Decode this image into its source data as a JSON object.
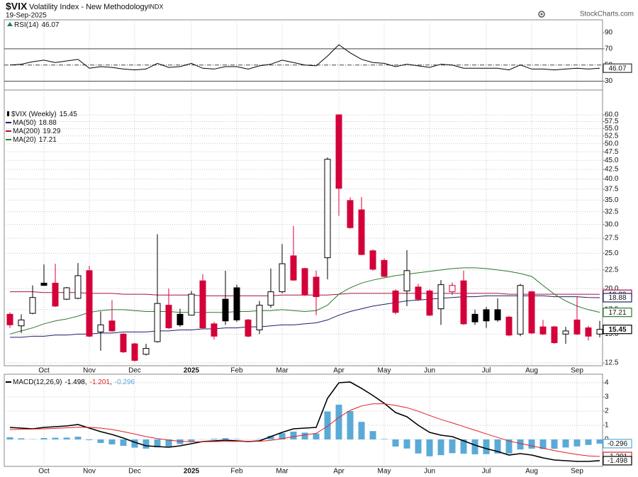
{
  "header": {
    "symbol": "$VIX",
    "name": "Volatility Index - New Methodology",
    "exchange": "INDX",
    "date": "19-Sep-2025",
    "source": "StockCharts.com"
  },
  "chart_data": [
    {
      "type": "line",
      "name": "RSI(14)",
      "color": "#000000",
      "overbought_fill": "#2e7d4f",
      "values": [
        50,
        51,
        54,
        56,
        53,
        55,
        57,
        46,
        48,
        47,
        45,
        44,
        45,
        52,
        47,
        48,
        52,
        46,
        45,
        48,
        48,
        45,
        49,
        51,
        56,
        53,
        50,
        49,
        61,
        75,
        65,
        57,
        53,
        52,
        48,
        51,
        49,
        47,
        51,
        50,
        46,
        46,
        46,
        46,
        44,
        50,
        45,
        45,
        44,
        45,
        46,
        45,
        46.07
      ],
      "ylim": [
        20,
        104
      ],
      "yticks": [
        30,
        50,
        70,
        90
      ],
      "reference_lines": [
        {
          "value": 70,
          "style": "solid"
        },
        {
          "value": 50,
          "style": "dash-dot"
        },
        {
          "value": 30,
          "style": "solid"
        }
      ]
    },
    {
      "type": "candlestick",
      "name": "$VIX (Weekly)",
      "categories": [
        null,
        null,
        null,
        "Oct",
        null,
        null,
        null,
        "Nov",
        null,
        null,
        null,
        "Dec",
        null,
        null,
        null,
        null,
        "2025",
        null,
        null,
        null,
        "Feb",
        null,
        null,
        null,
        "Mar",
        null,
        null,
        null,
        null,
        "Apr",
        null,
        null,
        null,
        "May",
        null,
        null,
        null,
        "Jun",
        null,
        null,
        null,
        null,
        "Jul",
        null,
        null,
        null,
        "Aug",
        null,
        null,
        null,
        "Sep",
        null,
        null
      ],
      "open": [
        17.0,
        15.8,
        17.1,
        20.7,
        20.7,
        18.7,
        18.8,
        22.4,
        15.2,
        16.3,
        15.0,
        14.1,
        13.2,
        14.3,
        18.0,
        17.0,
        16.9,
        21.0,
        16.0,
        18.7,
        20.1,
        16.4,
        15.4,
        18.0,
        19.6,
        24.6,
        22.7,
        21.5,
        24.3,
        60.0,
        34.9,
        32.9,
        25.4,
        23.9,
        19.7,
        19.7,
        20.2,
        19.7,
        17.6,
        19.6,
        21.0,
        17.0,
        17.5,
        17.5,
        16.7,
        15.0,
        19.6,
        15.7,
        15.7,
        15.0,
        16.4,
        15.6,
        15.0
      ],
      "high": [
        17.2,
        17.0,
        20.4,
        23.3,
        23.4,
        20.2,
        23.5,
        23.1,
        17.3,
        18.6,
        15.1,
        14.2,
        14.1,
        28.2,
        20.0,
        17.6,
        19.7,
        21.9,
        16.2,
        22.4,
        20.5,
        16.5,
        18.5,
        22.7,
        26.5,
        29.7,
        22.8,
        22.4,
        45.8,
        60.0,
        35.6,
        35.7,
        25.6,
        24.2,
        19.9,
        25.5,
        20.6,
        19.9,
        21.1,
        20.8,
        22.4,
        17.5,
        17.8,
        18.8,
        16.8,
        20.6,
        19.7,
        16.4,
        15.8,
        15.7,
        19.0,
        15.8,
        16.3
      ],
      "low": [
        15.6,
        15.1,
        17.0,
        20.4,
        17.8,
        18.6,
        18.7,
        14.7,
        13.5,
        15.2,
        13.3,
        12.6,
        13.1,
        14.2,
        15.5,
        15.7,
        16.9,
        15.5,
        14.5,
        15.9,
        16.2,
        14.7,
        15.0,
        17.7,
        19.4,
        21.0,
        19.1,
        16.9,
        21.2,
        31.7,
        29.2,
        24.7,
        22.4,
        21.5,
        17.0,
        17.9,
        18.5,
        16.8,
        15.9,
        19.2,
        15.9,
        15.9,
        15.6,
        16.2,
        14.8,
        14.8,
        15.0,
        14.9,
        14.1,
        14.1,
        14.9,
        14.4,
        14.7
      ],
      "close": [
        15.9,
        16.4,
        18.9,
        20.4,
        17.9,
        20.1,
        21.7,
        14.8,
        15.9,
        15.3,
        13.4,
        12.7,
        13.7,
        18.2,
        15.6,
        15.9,
        19.3,
        15.6,
        14.8,
        16.3,
        16.4,
        14.8,
        18.0,
        19.6,
        23.4,
        21.1,
        19.2,
        19.0,
        45.3,
        37.7,
        29.4,
        24.8,
        22.6,
        21.6,
        17.2,
        22.4,
        18.7,
        16.9,
        20.5,
        20.4,
        16.0,
        16.2,
        16.3,
        16.4,
        14.9,
        20.4,
        15.1,
        15.0,
        14.2,
        15.3,
        15.0,
        14.8,
        15.45
      ],
      "up_color": "#000000",
      "down_color": "#d4003a",
      "log_scale": true,
      "grid": true,
      "ylim": [
        12.5,
        60
      ],
      "yticks": [
        12.5,
        {
          "value": 15,
          "label": "15.0"
        },
        17.5,
        {
          "value": 20,
          "label": "20.0"
        },
        22.5,
        {
          "value": 25,
          "label": "25.0"
        },
        27.5,
        {
          "value": 30,
          "label": "30.0"
        },
        32.5,
        {
          "value": 35,
          "label": "35.0"
        },
        37.5,
        {
          "value": 40,
          "label": "40.0"
        },
        42.5,
        {
          "value": 45,
          "label": "45.0"
        },
        47.5,
        {
          "value": 50,
          "label": "50.0"
        },
        52.5,
        {
          "value": 55,
          "label": "55.0"
        },
        57.5,
        {
          "value": 60,
          "label": "60.0"
        }
      ],
      "overlays": [
        {
          "name": "MA(50)",
          "color": "#1f1f6b",
          "values": [
            14.7,
            14.7,
            14.8,
            14.8,
            14.9,
            14.9,
            15.0,
            15.0,
            15.1,
            15.1,
            15.2,
            15.2,
            15.2,
            15.3,
            15.3,
            15.4,
            15.4,
            15.5,
            15.5,
            15.6,
            15.6,
            15.7,
            15.7,
            15.8,
            15.9,
            15.9,
            16.0,
            16.1,
            16.4,
            16.9,
            17.3,
            17.6,
            17.9,
            18.1,
            18.3,
            18.5,
            18.6,
            18.7,
            18.8,
            18.9,
            19.0,
            19.0,
            19.1,
            19.1,
            19.1,
            19.1,
            19.1,
            19.1,
            19.0,
            19.0,
            19.0,
            18.9,
            18.88
          ]
        },
        {
          "name": "MA(200)",
          "color": "#a8123e",
          "values": [
            19.6,
            19.6,
            19.6,
            19.5,
            19.5,
            19.5,
            19.5,
            19.4,
            19.4,
            19.4,
            19.3,
            19.3,
            19.3,
            19.2,
            19.2,
            19.2,
            19.2,
            19.1,
            19.1,
            19.1,
            19.1,
            19.1,
            19.1,
            19.1,
            19.2,
            19.2,
            19.2,
            19.2,
            19.2,
            19.3,
            19.4,
            19.4,
            19.4,
            19.4,
            19.4,
            19.4,
            19.4,
            19.4,
            19.4,
            19.4,
            19.4,
            19.4,
            19.4,
            19.4,
            19.3,
            19.3,
            19.3,
            19.3,
            19.3,
            19.3,
            19.3,
            19.3,
            19.29
          ]
        },
        {
          "name": "MA(20)",
          "color": "#2b7a2b",
          "values": [
            15.0,
            15.3,
            15.6,
            16.0,
            16.3,
            16.5,
            16.8,
            17.2,
            17.4,
            17.5,
            17.5,
            17.4,
            17.3,
            17.3,
            17.3,
            17.2,
            17.2,
            17.2,
            17.2,
            17.2,
            17.3,
            17.3,
            17.4,
            17.4,
            17.5,
            17.4,
            17.3,
            17.4,
            18.0,
            19.3,
            20.1,
            20.7,
            21.1,
            21.4,
            21.7,
            21.9,
            22.1,
            22.3,
            22.5,
            22.7,
            22.8,
            22.8,
            22.7,
            22.5,
            22.3,
            22.0,
            21.6,
            20.4,
            19.3,
            18.5,
            17.9,
            17.5,
            17.21
          ]
        }
      ]
    },
    {
      "type": "combo",
      "name": "MACD(12,26,9)",
      "separator": ",",
      "categories": [
        null,
        null,
        null,
        "Oct",
        null,
        null,
        null,
        "Nov",
        null,
        null,
        null,
        "Dec",
        null,
        null,
        null,
        null,
        "2025",
        null,
        null,
        null,
        "Feb",
        null,
        null,
        null,
        "Mar",
        null,
        null,
        null,
        null,
        "Apr",
        null,
        null,
        null,
        "May",
        null,
        null,
        null,
        "Jun",
        null,
        null,
        null,
        null,
        "Jul",
        null,
        null,
        null,
        "Aug",
        null,
        null,
        null,
        "Sep",
        null,
        null
      ],
      "ylim": [
        -1.9,
        4.6
      ],
      "yticks": [
        0,
        1,
        2,
        3,
        4
      ],
      "series": [
        {
          "type": "line",
          "color": "#000000",
          "values": [
            0.85,
            0.8,
            0.75,
            0.85,
            0.9,
            0.95,
            1.05,
            0.8,
            0.55,
            0.35,
            0.1,
            -0.2,
            -0.45,
            -0.5,
            -0.55,
            -0.45,
            -0.3,
            -0.15,
            -0.1,
            -0.05,
            -0.1,
            -0.15,
            -0.1,
            0.2,
            0.5,
            0.75,
            0.8,
            0.85,
            2.9,
            4.0,
            4.05,
            3.6,
            3.1,
            2.55,
            1.9,
            1.6,
            1.0,
            0.5,
            0.3,
            0.2,
            -0.1,
            -0.4,
            -0.65,
            -0.85,
            -1.1,
            -1.0,
            -1.1,
            -1.3,
            -1.45,
            -1.5,
            -1.55,
            -1.55,
            -1.498
          ]
        },
        {
          "type": "line",
          "color": "#e02020",
          "values": [
            0.7,
            0.72,
            0.73,
            0.75,
            0.78,
            0.82,
            0.86,
            0.85,
            0.8,
            0.7,
            0.55,
            0.38,
            0.2,
            0.06,
            -0.05,
            -0.13,
            -0.16,
            -0.16,
            -0.15,
            -0.14,
            -0.13,
            -0.14,
            -0.13,
            -0.06,
            0.05,
            0.2,
            0.32,
            0.43,
            0.93,
            1.55,
            2.05,
            2.36,
            2.51,
            2.52,
            2.4,
            2.24,
            1.99,
            1.69,
            1.41,
            1.17,
            0.91,
            0.65,
            0.39,
            0.14,
            -0.11,
            -0.29,
            -0.45,
            -0.62,
            -0.79,
            -0.93,
            -1.06,
            -1.16,
            -1.201
          ]
        },
        {
          "type": "bar",
          "color": "#5aaad8",
          "values": [
            0.15,
            0.08,
            0.02,
            0.1,
            0.12,
            0.13,
            0.19,
            -0.05,
            -0.25,
            -0.35,
            -0.45,
            -0.58,
            -0.65,
            -0.56,
            -0.5,
            -0.32,
            -0.14,
            0.01,
            0.05,
            0.09,
            0.03,
            -0.01,
            0.03,
            0.26,
            0.45,
            0.55,
            0.48,
            0.42,
            1.97,
            2.45,
            2.0,
            1.24,
            0.59,
            0.03,
            -0.5,
            -0.64,
            -0.99,
            -1.19,
            -1.11,
            -0.97,
            -1.01,
            -1.05,
            -1.04,
            -0.99,
            -0.99,
            -0.71,
            -0.65,
            -0.68,
            -0.66,
            -0.57,
            -0.49,
            -0.39,
            -0.296
          ]
        }
      ]
    }
  ]
}
